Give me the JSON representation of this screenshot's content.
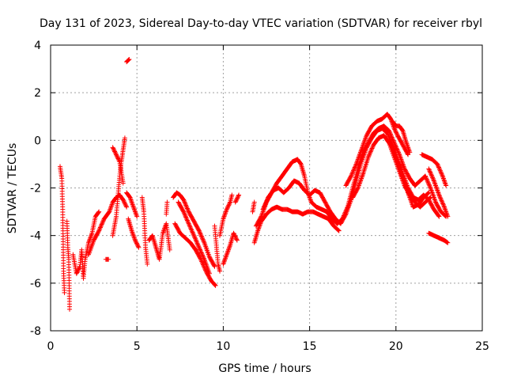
{
  "chart_data": {
    "type": "scatter",
    "title": "Day 131 of 2023, Sidereal Day-to-day VTEC variation (SDTVAR) for receiver rbyl",
    "xlabel": "GPS time / hours",
    "ylabel": "SDTVAR / TECUs",
    "xlim": [
      0,
      25
    ],
    "ylim": [
      -8,
      4
    ],
    "xticks": [
      0,
      5,
      10,
      15,
      20,
      25
    ],
    "yticks": [
      -8,
      -6,
      -4,
      -2,
      0,
      2,
      4
    ],
    "grid": true,
    "marker": "+",
    "color": "#ff0000",
    "series": [
      {
        "name": "SDTVAR",
        "tracks": [
          [
            [
              0.55,
              -1.1
            ],
            [
              0.65,
              -1.6
            ],
            [
              0.7,
              -2.9
            ],
            [
              0.75,
              -5.5
            ],
            [
              0.8,
              -6.4
            ]
          ],
          [
            [
              0.95,
              -3.4
            ],
            [
              1.0,
              -4.5
            ],
            [
              1.05,
              -5.0
            ],
            [
              1.1,
              -7.1
            ]
          ],
          [
            [
              1.3,
              -4.8
            ],
            [
              1.5,
              -5.6
            ],
            [
              1.7,
              -5.3
            ],
            [
              1.8,
              -4.6
            ],
            [
              1.9,
              -5.8
            ],
            [
              2.0,
              -5.0
            ],
            [
              2.2,
              -4.3
            ],
            [
              2.4,
              -3.9
            ],
            [
              2.6,
              -3.2
            ],
            [
              2.8,
              -3.0
            ]
          ],
          [
            [
              3.2,
              -5.0
            ],
            [
              3.35,
              -5.0
            ]
          ],
          [
            [
              2.2,
              -4.8
            ],
            [
              2.5,
              -4.2
            ],
            [
              2.8,
              -3.8
            ],
            [
              3.1,
              -3.3
            ],
            [
              3.4,
              -3.0
            ],
            [
              3.6,
              -2.6
            ],
            [
              3.8,
              -2.4
            ],
            [
              4.0,
              -2.3
            ],
            [
              4.2,
              -2.5
            ],
            [
              4.4,
              -2.8
            ]
          ],
          [
            [
              3.6,
              -4.0
            ],
            [
              3.8,
              -3.2
            ],
            [
              4.0,
              -1.5
            ],
            [
              4.1,
              -0.9
            ],
            [
              4.2,
              -0.4
            ],
            [
              4.3,
              0.1
            ]
          ],
          [
            [
              3.6,
              -0.3
            ],
            [
              3.8,
              -0.6
            ],
            [
              4.0,
              -0.9
            ],
            [
              4.2,
              -1.8
            ]
          ],
          [
            [
              4.4,
              -2.2
            ],
            [
              4.6,
              -2.4
            ],
            [
              4.8,
              -2.8
            ],
            [
              5.0,
              -3.2
            ]
          ],
          [
            [
              4.5,
              -3.3
            ],
            [
              4.7,
              -3.8
            ],
            [
              4.9,
              -4.2
            ],
            [
              5.1,
              -4.5
            ]
          ],
          [
            [
              4.4,
              3.3
            ],
            [
              4.55,
              3.4
            ]
          ],
          [
            [
              5.3,
              -2.4
            ],
            [
              5.4,
              -3.0
            ],
            [
              5.5,
              -4.5
            ],
            [
              5.6,
              -5.2
            ]
          ],
          [
            [
              5.7,
              -4.2
            ],
            [
              5.9,
              -4.0
            ],
            [
              6.1,
              -4.5
            ],
            [
              6.3,
              -5.0
            ],
            [
              6.5,
              -3.9
            ],
            [
              6.7,
              -3.5
            ],
            [
              6.9,
              -4.6
            ]
          ],
          [
            [
              6.7,
              -3.1
            ],
            [
              6.75,
              -2.6
            ]
          ],
          [
            [
              7.1,
              -2.4
            ],
            [
              7.3,
              -2.2
            ],
            [
              7.5,
              -2.3
            ],
            [
              7.7,
              -2.5
            ],
            [
              8.0,
              -3.0
            ],
            [
              8.3,
              -3.4
            ],
            [
              8.6,
              -3.8
            ],
            [
              8.9,
              -4.3
            ],
            [
              9.2,
              -4.9
            ],
            [
              9.5,
              -5.3
            ]
          ],
          [
            [
              7.2,
              -3.5
            ],
            [
              7.5,
              -3.9
            ],
            [
              7.8,
              -4.1
            ],
            [
              8.1,
              -4.3
            ],
            [
              8.4,
              -4.6
            ],
            [
              8.7,
              -5.0
            ],
            [
              9.0,
              -5.5
            ],
            [
              9.3,
              -5.9
            ],
            [
              9.55,
              -6.1
            ]
          ],
          [
            [
              7.4,
              -2.6
            ],
            [
              7.7,
              -3.0
            ],
            [
              8.0,
              -3.5
            ],
            [
              8.3,
              -4.0
            ],
            [
              8.6,
              -4.5
            ],
            [
              8.9,
              -5.0
            ],
            [
              9.2,
              -5.6
            ]
          ],
          [
            [
              9.5,
              -3.6
            ],
            [
              9.6,
              -4.4
            ],
            [
              9.7,
              -5.2
            ],
            [
              9.8,
              -5.5
            ]
          ],
          [
            [
              9.8,
              -4.0
            ],
            [
              10.0,
              -3.3
            ],
            [
              10.2,
              -2.9
            ],
            [
              10.4,
              -2.6
            ],
            [
              10.5,
              -2.3
            ]
          ],
          [
            [
              10.0,
              -5.2
            ],
            [
              10.2,
              -4.8
            ],
            [
              10.4,
              -4.4
            ],
            [
              10.6,
              -3.9
            ],
            [
              10.8,
              -4.2
            ]
          ],
          [
            [
              10.7,
              -2.6
            ],
            [
              10.9,
              -2.3
            ]
          ],
          [
            [
              11.7,
              -3.0
            ],
            [
              11.8,
              -2.6
            ]
          ],
          [
            [
              11.8,
              -4.3
            ],
            [
              12.0,
              -3.8
            ],
            [
              12.2,
              -3.4
            ],
            [
              12.5,
              -3.1
            ],
            [
              12.8,
              -2.9
            ],
            [
              13.1,
              -2.8
            ],
            [
              13.4,
              -2.9
            ],
            [
              13.7,
              -2.9
            ],
            [
              14.0,
              -3.0
            ],
            [
              14.3,
              -3.0
            ],
            [
              14.6,
              -3.1
            ],
            [
              14.9,
              -3.0
            ],
            [
              15.2,
              -3.0
            ],
            [
              15.5,
              -3.1
            ],
            [
              15.8,
              -3.2
            ],
            [
              16.1,
              -3.3
            ],
            [
              16.4,
              -3.6
            ],
            [
              16.7,
              -3.8
            ]
          ],
          [
            [
              11.9,
              -3.6
            ],
            [
              12.2,
              -3.2
            ],
            [
              12.5,
              -2.6
            ],
            [
              12.8,
              -2.2
            ],
            [
              13.1,
              -1.8
            ],
            [
              13.4,
              -1.5
            ],
            [
              13.7,
              -1.2
            ],
            [
              14.0,
              -0.9
            ],
            [
              14.3,
              -0.8
            ],
            [
              14.5,
              -1.0
            ],
            [
              14.7,
              -1.5
            ],
            [
              14.9,
              -2.2
            ],
            [
              15.1,
              -2.6
            ],
            [
              15.4,
              -2.8
            ],
            [
              15.7,
              -2.9
            ],
            [
              16.0,
              -3.0
            ],
            [
              16.3,
              -3.3
            ],
            [
              16.6,
              -3.5
            ],
            [
              16.9,
              -3.3
            ],
            [
              17.2,
              -2.8
            ],
            [
              17.5,
              -2.0
            ],
            [
              17.8,
              -1.2
            ],
            [
              18.1,
              -0.5
            ],
            [
              18.4,
              -0.1
            ],
            [
              18.7,
              0.3
            ],
            [
              19.0,
              0.5
            ],
            [
              19.3,
              0.6
            ],
            [
              19.6,
              0.4
            ],
            [
              19.9,
              -0.1
            ],
            [
              20.2,
              -0.6
            ],
            [
              20.5,
              -1.2
            ],
            [
              20.8,
              -1.6
            ],
            [
              21.1,
              -1.9
            ],
            [
              21.4,
              -1.7
            ],
            [
              21.7,
              -1.5
            ],
            [
              22.0,
              -2.0
            ],
            [
              22.3,
              -2.6
            ],
            [
              22.6,
              -3.0
            ],
            [
              22.9,
              -3.2
            ]
          ],
          [
            [
              12.3,
              -2.9
            ],
            [
              12.6,
              -2.4
            ],
            [
              12.9,
              -2.1
            ],
            [
              13.2,
              -2.0
            ],
            [
              13.5,
              -2.2
            ],
            [
              13.8,
              -2.0
            ],
            [
              14.1,
              -1.7
            ],
            [
              14.4,
              -1.8
            ],
            [
              14.7,
              -2.1
            ],
            [
              15.0,
              -2.3
            ],
            [
              15.3,
              -2.1
            ],
            [
              15.6,
              -2.2
            ],
            [
              15.9,
              -2.6
            ],
            [
              16.2,
              -3.0
            ],
            [
              16.5,
              -3.3
            ],
            [
              16.8,
              -3.5
            ],
            [
              17.1,
              -3.1
            ],
            [
              17.4,
              -2.5
            ],
            [
              17.7,
              -1.7
            ],
            [
              18.0,
              -0.9
            ],
            [
              18.3,
              -0.3
            ],
            [
              18.6,
              0.1
            ],
            [
              18.9,
              0.4
            ],
            [
              19.2,
              0.5
            ],
            [
              19.5,
              0.3
            ],
            [
              19.8,
              -0.2
            ],
            [
              20.1,
              -0.8
            ],
            [
              20.4,
              -1.4
            ],
            [
              20.7,
              -2.0
            ],
            [
              21.0,
              -2.4
            ],
            [
              21.3,
              -2.5
            ],
            [
              21.6,
              -2.3
            ],
            [
              21.9,
              -2.5
            ],
            [
              22.2,
              -2.9
            ],
            [
              22.5,
              -3.2
            ]
          ],
          [
            [
              17.1,
              -1.9
            ],
            [
              17.4,
              -1.5
            ],
            [
              17.7,
              -1.0
            ],
            [
              18.0,
              -0.4
            ],
            [
              18.3,
              0.2
            ],
            [
              18.6,
              0.6
            ],
            [
              18.9,
              0.8
            ],
            [
              19.2,
              0.9
            ],
            [
              19.5,
              1.1
            ],
            [
              19.7,
              0.9
            ],
            [
              19.9,
              0.5
            ],
            [
              20.1,
              0.2
            ],
            [
              20.4,
              -0.2
            ],
            [
              20.7,
              -0.6
            ]
          ],
          [
            [
              17.5,
              -2.4
            ],
            [
              17.8,
              -2.0
            ],
            [
              18.1,
              -1.4
            ],
            [
              18.4,
              -0.7
            ],
            [
              18.7,
              -0.2
            ],
            [
              19.0,
              0.1
            ],
            [
              19.3,
              0.2
            ],
            [
              19.6,
              -0.1
            ],
            [
              19.9,
              -0.7
            ],
            [
              20.2,
              -1.3
            ],
            [
              20.5,
              -1.9
            ],
            [
              20.8,
              -2.3
            ],
            [
              21.1,
              -2.6
            ],
            [
              21.4,
              -2.8
            ],
            [
              21.7,
              -2.6
            ],
            [
              22.0,
              -2.4
            ]
          ],
          [
            [
              19.5,
              0.0
            ],
            [
              19.8,
              -0.3
            ],
            [
              20.1,
              -0.9
            ],
            [
              20.4,
              -1.6
            ],
            [
              20.7,
              -2.2
            ],
            [
              21.0,
              -2.8
            ],
            [
              21.3,
              -2.7
            ],
            [
              21.6,
              -2.4
            ],
            [
              21.9,
              -2.2
            ]
          ],
          [
            [
              19.8,
              0.8
            ],
            [
              20.0,
              0.6
            ],
            [
              20.2,
              0.6
            ],
            [
              20.4,
              0.4
            ],
            [
              20.6,
              -0.1
            ],
            [
              20.8,
              -0.5
            ]
          ],
          [
            [
              21.5,
              -0.6
            ],
            [
              21.8,
              -0.7
            ],
            [
              22.1,
              -0.8
            ],
            [
              22.4,
              -1.0
            ],
            [
              22.7,
              -1.5
            ],
            [
              22.9,
              -1.9
            ]
          ],
          [
            [
              21.9,
              -1.2
            ],
            [
              22.2,
              -1.7
            ],
            [
              22.5,
              -2.3
            ],
            [
              22.8,
              -2.8
            ],
            [
              23.0,
              -3.2
            ]
          ],
          [
            [
              21.9,
              -3.9
            ],
            [
              22.2,
              -4.0
            ],
            [
              22.5,
              -4.1
            ],
            [
              22.8,
              -4.2
            ],
            [
              23.0,
              -4.3
            ]
          ]
        ]
      }
    ]
  }
}
